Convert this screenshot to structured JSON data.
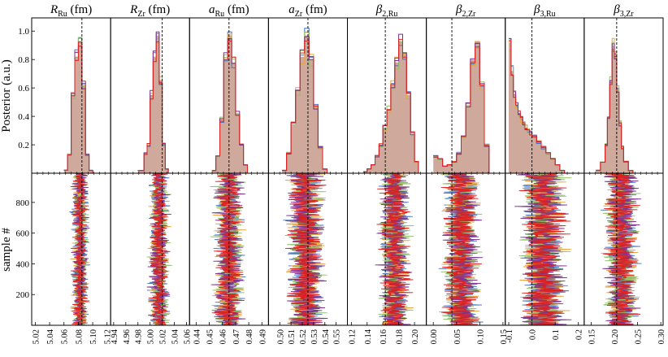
{
  "figure": {
    "top_ylabel": "Posterior (a.u.)",
    "bottom_ylabel": "sample #",
    "top_yticks": [
      "0.2",
      "0.4",
      "0.6",
      "0.8",
      "1.0"
    ],
    "bottom_yticks": [
      "200",
      "400",
      "600",
      "800"
    ]
  },
  "colors": {
    "series": [
      "#4472c4",
      "#e8a33c",
      "#8fbf6a",
      "#7b2d8e",
      "#e0201b"
    ],
    "hist_fill": "#c79a8a",
    "axis": "#000000",
    "reference_line": "#000000"
  },
  "chart_data": [
    {
      "type": "area",
      "title_main": "R",
      "title_sub": "Ru",
      "title_unit": " (fm)",
      "xlim": [
        5.015,
        5.125
      ],
      "xticks": [
        "5.02",
        "5.04",
        "5.06",
        "5.08",
        "5.10",
        "5.12"
      ],
      "ref": 5.085,
      "posterior": {
        "bins": [
          5.06,
          5.065,
          5.07,
          5.075,
          5.08,
          5.085,
          5.09,
          5.095,
          5.1
        ],
        "values": [
          0.02,
          0.13,
          0.55,
          0.82,
          0.93,
          0.62,
          0.13,
          0.02,
          0.0
        ]
      },
      "samples_range": [
        5.065,
        5.1
      ]
    },
    {
      "type": "area",
      "title_main": "R",
      "title_sub": "Zr",
      "title_unit": " (fm)",
      "xlim": [
        4.935,
        5.065
      ],
      "xticks": [
        "4.94",
        "4.96",
        "4.98",
        "5.00",
        "5.02",
        "5.04",
        "5.06"
      ],
      "ref": 5.02,
      "posterior": {
        "bins": [
          4.98,
          4.99,
          4.995,
          5.0,
          5.005,
          5.01,
          5.015,
          5.02,
          5.025,
          5.03
        ],
        "values": [
          0.02,
          0.14,
          0.2,
          0.55,
          0.82,
          0.97,
          0.65,
          0.2,
          0.03,
          0.0
        ]
      },
      "samples_range": [
        4.99,
        5.04
      ]
    },
    {
      "type": "area",
      "title_main": "a",
      "title_sub": "Ru",
      "title_unit": " (fm)",
      "xlim": [
        0.435,
        0.495
      ],
      "xticks": [
        "0.44",
        "0.45",
        "0.46",
        "0.47",
        "0.48",
        "0.49"
      ],
      "ref": 0.465,
      "posterior": {
        "bins": [
          0.452,
          0.455,
          0.458,
          0.461,
          0.464,
          0.467,
          0.47,
          0.473,
          0.476,
          0.479
        ],
        "values": [
          0.02,
          0.12,
          0.38,
          0.8,
          0.97,
          0.78,
          0.42,
          0.2,
          0.06,
          0.0
        ]
      },
      "samples_range": [
        0.448,
        0.482
      ]
    },
    {
      "type": "area",
      "title_main": "a",
      "title_sub": "Zr",
      "title_unit": " (fm)",
      "xlim": [
        0.49,
        0.56
      ],
      "xticks": [
        "0.50",
        "0.51",
        "0.52",
        "0.53",
        "0.54",
        "0.55"
      ],
      "ref": 0.525,
      "posterior": {
        "bins": [
          0.502,
          0.506,
          0.51,
          0.514,
          0.518,
          0.522,
          0.526,
          0.53,
          0.534,
          0.538,
          0.542
        ],
        "values": [
          0.02,
          0.14,
          0.34,
          0.58,
          0.82,
          0.97,
          0.8,
          0.48,
          0.18,
          0.03,
          0.0
        ]
      },
      "samples_range": [
        0.498,
        0.548
      ]
    },
    {
      "type": "area",
      "title_main": "β",
      "title_sub": "2,Ru",
      "title_unit": "",
      "xlim": [
        0.115,
        0.215
      ],
      "xticks": [
        "0.12",
        "0.14",
        "0.16",
        "0.18",
        "0.20"
      ],
      "ref": 0.163,
      "posterior": {
        "bins": [
          0.135,
          0.14,
          0.145,
          0.15,
          0.155,
          0.16,
          0.165,
          0.17,
          0.175,
          0.18,
          0.185,
          0.19,
          0.195,
          0.2,
          0.205
        ],
        "values": [
          0.01,
          0.03,
          0.06,
          0.12,
          0.2,
          0.32,
          0.45,
          0.62,
          0.78,
          0.93,
          0.85,
          0.55,
          0.28,
          0.08,
          0.0
        ]
      },
      "samples_range": [
        0.145,
        0.205
      ]
    },
    {
      "type": "area",
      "title_main": "β",
      "title_sub": "2,Zr",
      "title_unit": "",
      "xlim": [
        -0.015,
        0.155
      ],
      "xticks": [
        "0.00",
        "0.05",
        "0.10",
        "0.15"
      ],
      "ref": 0.04,
      "posterior": {
        "bins": [
          0.0,
          0.01,
          0.02,
          0.03,
          0.04,
          0.05,
          0.06,
          0.07,
          0.08,
          0.09,
          0.1,
          0.11,
          0.12
        ],
        "values": [
          0.12,
          0.1,
          0.05,
          0.06,
          0.08,
          0.14,
          0.26,
          0.48,
          0.8,
          0.93,
          0.62,
          0.2,
          0.0
        ]
      },
      "samples_range": [
        0.0,
        0.12
      ]
    },
    {
      "type": "area",
      "title_main": "β",
      "title_sub": "3,Ru",
      "title_unit": "",
      "xlim": [
        -0.115,
        0.225
      ],
      "xticks": [
        "-0.1",
        "0.0",
        "0.1",
        "0.2"
      ],
      "ref": 0.0,
      "posterior": {
        "bins": [
          -0.1,
          -0.09,
          -0.08,
          -0.07,
          -0.06,
          -0.05,
          -0.04,
          -0.03,
          -0.02,
          -0.01,
          0.0,
          0.02,
          0.04,
          0.06,
          0.08,
          0.1,
          0.12,
          0.14
        ],
        "values": [
          0.92,
          0.72,
          0.55,
          0.48,
          0.42,
          0.38,
          0.35,
          0.32,
          0.3,
          0.28,
          0.26,
          0.22,
          0.18,
          0.14,
          0.1,
          0.06,
          0.02,
          0.0
        ]
      },
      "samples_range": [
        -0.1,
        0.2
      ]
    },
    {
      "type": "area",
      "title_main": "β",
      "title_sub": "3,Zr",
      "title_unit": "",
      "xlim": [
        0.135,
        0.305
      ],
      "xticks": [
        "0.15",
        "0.20",
        "0.25",
        "0.30"
      ],
      "ref": 0.205,
      "posterior": {
        "bins": [
          0.16,
          0.17,
          0.18,
          0.185,
          0.19,
          0.195,
          0.2,
          0.205,
          0.21,
          0.215,
          0.22,
          0.23,
          0.24
        ],
        "values": [
          0.02,
          0.08,
          0.2,
          0.4,
          0.65,
          0.9,
          0.85,
          0.6,
          0.35,
          0.18,
          0.08,
          0.02,
          0.0
        ]
      },
      "samples_range": [
        0.16,
        0.27
      ]
    }
  ]
}
